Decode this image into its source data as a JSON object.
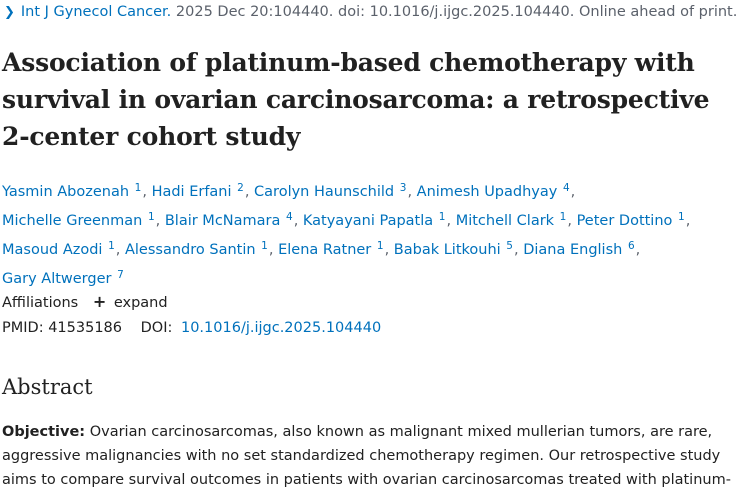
{
  "citation": {
    "journal": "Int J Gynecol Cancer.",
    "details": "2025 Dec 20:104440. doi: 10.1016/j.ijgc.2025.104440. Online ahead of print."
  },
  "title_lines": [
    "Association of platinum-based chemotherapy with",
    "survival in ovarian carcinosarcoma: a retrospective",
    "2-center cohort study"
  ],
  "authors": [
    {
      "name": "Yasmin Abozenah",
      "aff": "1"
    },
    {
      "name": "Hadi Erfani",
      "aff": "2"
    },
    {
      "name": "Carolyn Haunschild",
      "aff": "3"
    },
    {
      "name": "Animesh Upadhyay",
      "aff": "4"
    },
    {
      "name": "Michelle Greenman",
      "aff": "1"
    },
    {
      "name": "Blair McNamara",
      "aff": "4"
    },
    {
      "name": "Katyayani Papatla",
      "aff": "1"
    },
    {
      "name": "Mitchell Clark",
      "aff": "1"
    },
    {
      "name": "Peter Dottino",
      "aff": "1"
    },
    {
      "name": "Masoud Azodi",
      "aff": "1"
    },
    {
      "name": "Alessandro Santin",
      "aff": "1"
    },
    {
      "name": "Elena Ratner",
      "aff": "1"
    },
    {
      "name": "Babak Litkouhi",
      "aff": "5"
    },
    {
      "name": "Diana English",
      "aff": "6"
    },
    {
      "name": "Gary Altwerger",
      "aff": "7"
    }
  ],
  "affiliations": {
    "label": "Affiliations",
    "expand_label": "expand"
  },
  "ids": {
    "pmid_label": "PMID:",
    "pmid": "41535186",
    "doi_label": "DOI:",
    "doi": "10.1016/j.ijgc.2025.104440"
  },
  "abstract": {
    "heading": "Abstract",
    "objective_label": "Objective:",
    "lines": [
      "Ovarian carcinosarcomas, also known as malignant mixed mullerian tumors, are rare,",
      "aggressive malignancies with no set standardized chemotherapy regimen. Our retrospective study",
      "aims to compare survival outcomes in patients with ovarian carcinosarcomas treated with platinum-"
    ]
  },
  "icons": {
    "chevron": "chevron-right-icon",
    "plus": "plus-icon"
  },
  "colors": {
    "link": "#0071bc",
    "muted": "#5b616b",
    "text": "#212121"
  }
}
